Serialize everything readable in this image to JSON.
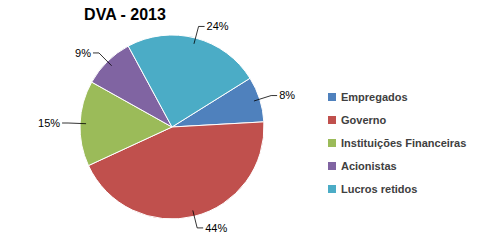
{
  "chart_data": {
    "type": "pie",
    "title": "DVA - 2013",
    "categories": [
      "Empregados",
      "Governo",
      "Instituições Financeiras",
      "Acionistas",
      "Lucros retidos"
    ],
    "values": [
      8,
      44,
      15,
      9,
      24
    ],
    "value_labels": [
      "8%",
      "44%",
      "15%",
      "9%",
      "24%"
    ],
    "colors": [
      "#4f81bd",
      "#c0504d",
      "#9bbb59",
      "#8064a2",
      "#4bacc6"
    ],
    "data_labels": true,
    "legend": "right"
  }
}
